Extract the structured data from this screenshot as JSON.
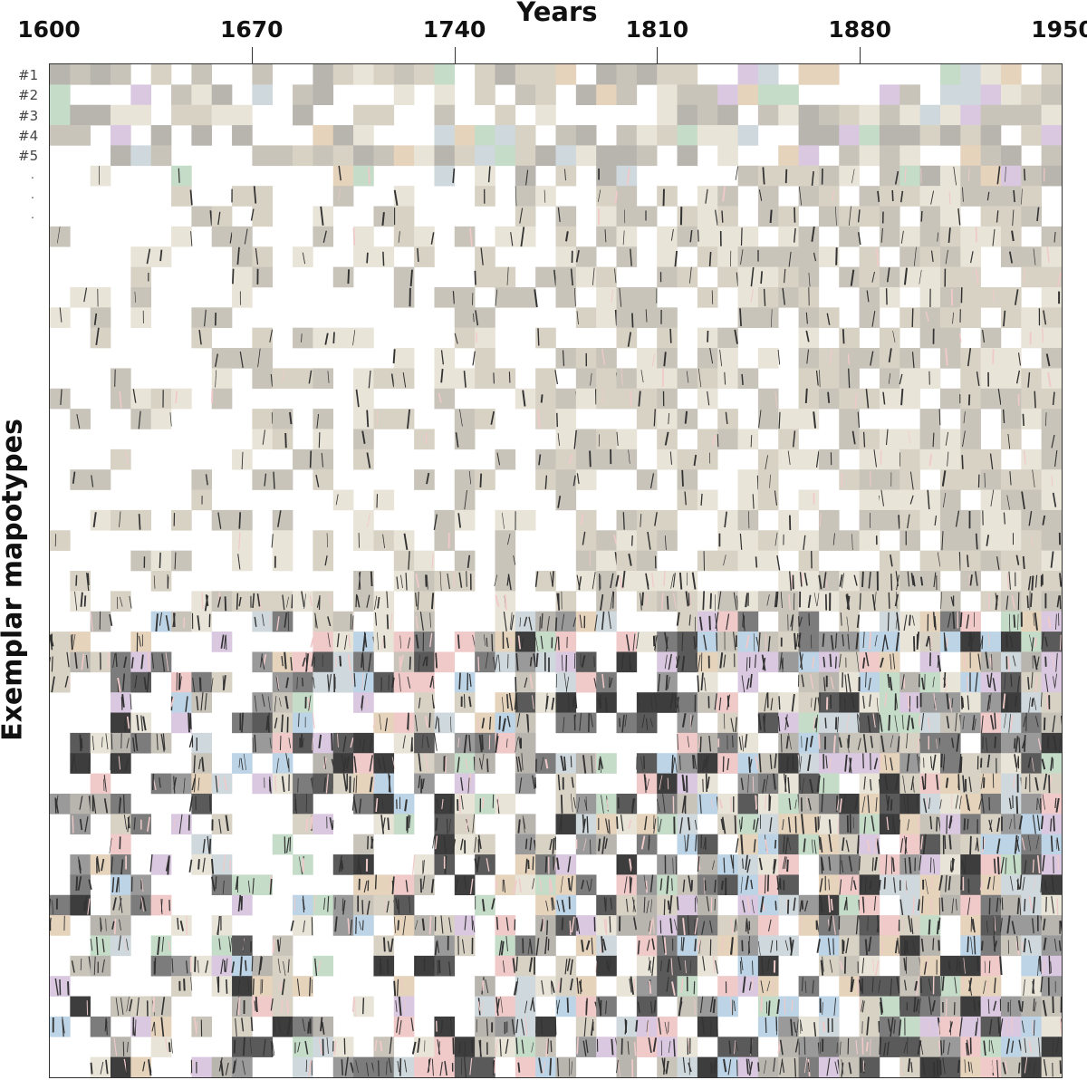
{
  "figure": {
    "x_axis_title": "Years",
    "y_axis_title": "Exemplar mapotypes",
    "x_ticks": [
      "1600",
      "1670",
      "1740",
      "1810",
      "1880",
      "1950"
    ],
    "x_tick_values": [
      1600,
      1670,
      1740,
      1810,
      1880,
      1950
    ],
    "x_range": [
      1600,
      1950
    ],
    "row_labels": [
      "#1",
      "#2",
      "#3",
      "#4",
      "#5"
    ],
    "continuation_marks": [
      ".",
      ".",
      "."
    ]
  },
  "mosaic": {
    "rows": 50,
    "columns": 50,
    "tile_style": "map-texture thumbnails",
    "palette": [
      "#e9e4d8",
      "#d8d2c4",
      "#c9c4ba",
      "#b8b4ae",
      "#9a9a9a",
      "#7c7c7c",
      "#cfd8dc",
      "#c5dcc8",
      "#e6d3bb",
      "#d9c8e0",
      "#f0c9c9",
      "#bcd4e6",
      "#5a5a5a",
      "#3d3d3d"
    ]
  }
}
